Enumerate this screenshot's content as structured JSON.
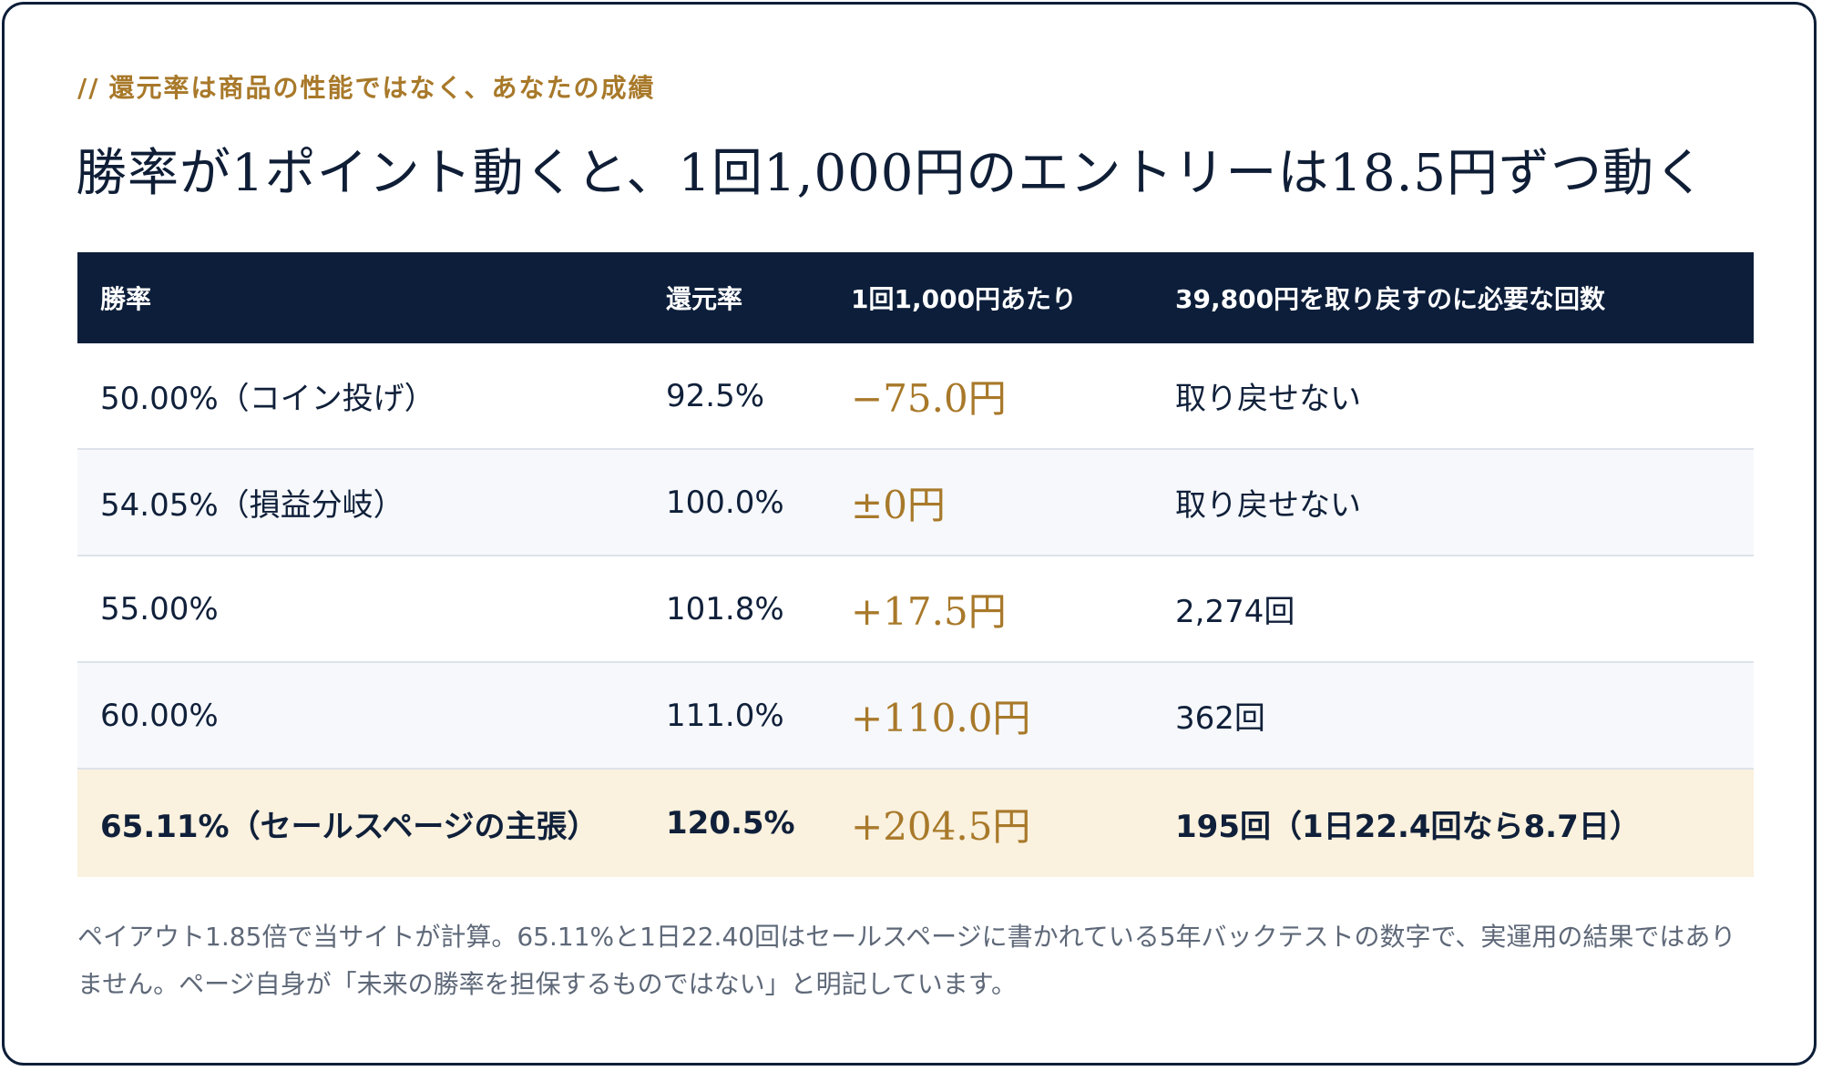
{
  "eyebrow": {
    "slash": "//",
    "text": "還元率は商品の性能ではなく、あなたの成績"
  },
  "title": "勝率が1ポイント動くと、1回1,000円のエントリーは18.5円ずつ動く",
  "table": {
    "headers": [
      "勝率",
      "還元率",
      "1回1,000円あたり",
      "39,800円を取り戻すのに必要な回数"
    ],
    "rows": [
      {
        "win_rate": "50.00%（コイン投げ）",
        "return_rate": "92.5%",
        "per_entry": "−75.0円",
        "recover": "取り戻せない"
      },
      {
        "win_rate": "54.05%（損益分岐）",
        "return_rate": "100.0%",
        "per_entry": "±0円",
        "recover": "取り戻せない"
      },
      {
        "win_rate": "55.00%",
        "return_rate": "101.8%",
        "per_entry": "+17.5円",
        "recover": "2,274回"
      },
      {
        "win_rate": "60.00%",
        "return_rate": "111.0%",
        "per_entry": "+110.0円",
        "recover": "362回"
      },
      {
        "win_rate": "65.11%（セールスページの主張）",
        "return_rate": "120.5%",
        "per_entry": "+204.5円",
        "recover": "195回（1日22.4回なら8.7日）"
      }
    ]
  },
  "note": "ペイアウト1.85倍で当サイトが計算。65.11%と1日22.40回はセールスページに書かれている5年バックテストの数字で、実運用の結果ではありません。ページ自身が「未来の勝率を担保するものではない」と明記しています。",
  "colors": {
    "accent": "#a8792a",
    "header_bg": "#0c1e3a",
    "highlight_row_bg": "#faf1de",
    "alt_row_bg": "#f6f8fb"
  }
}
